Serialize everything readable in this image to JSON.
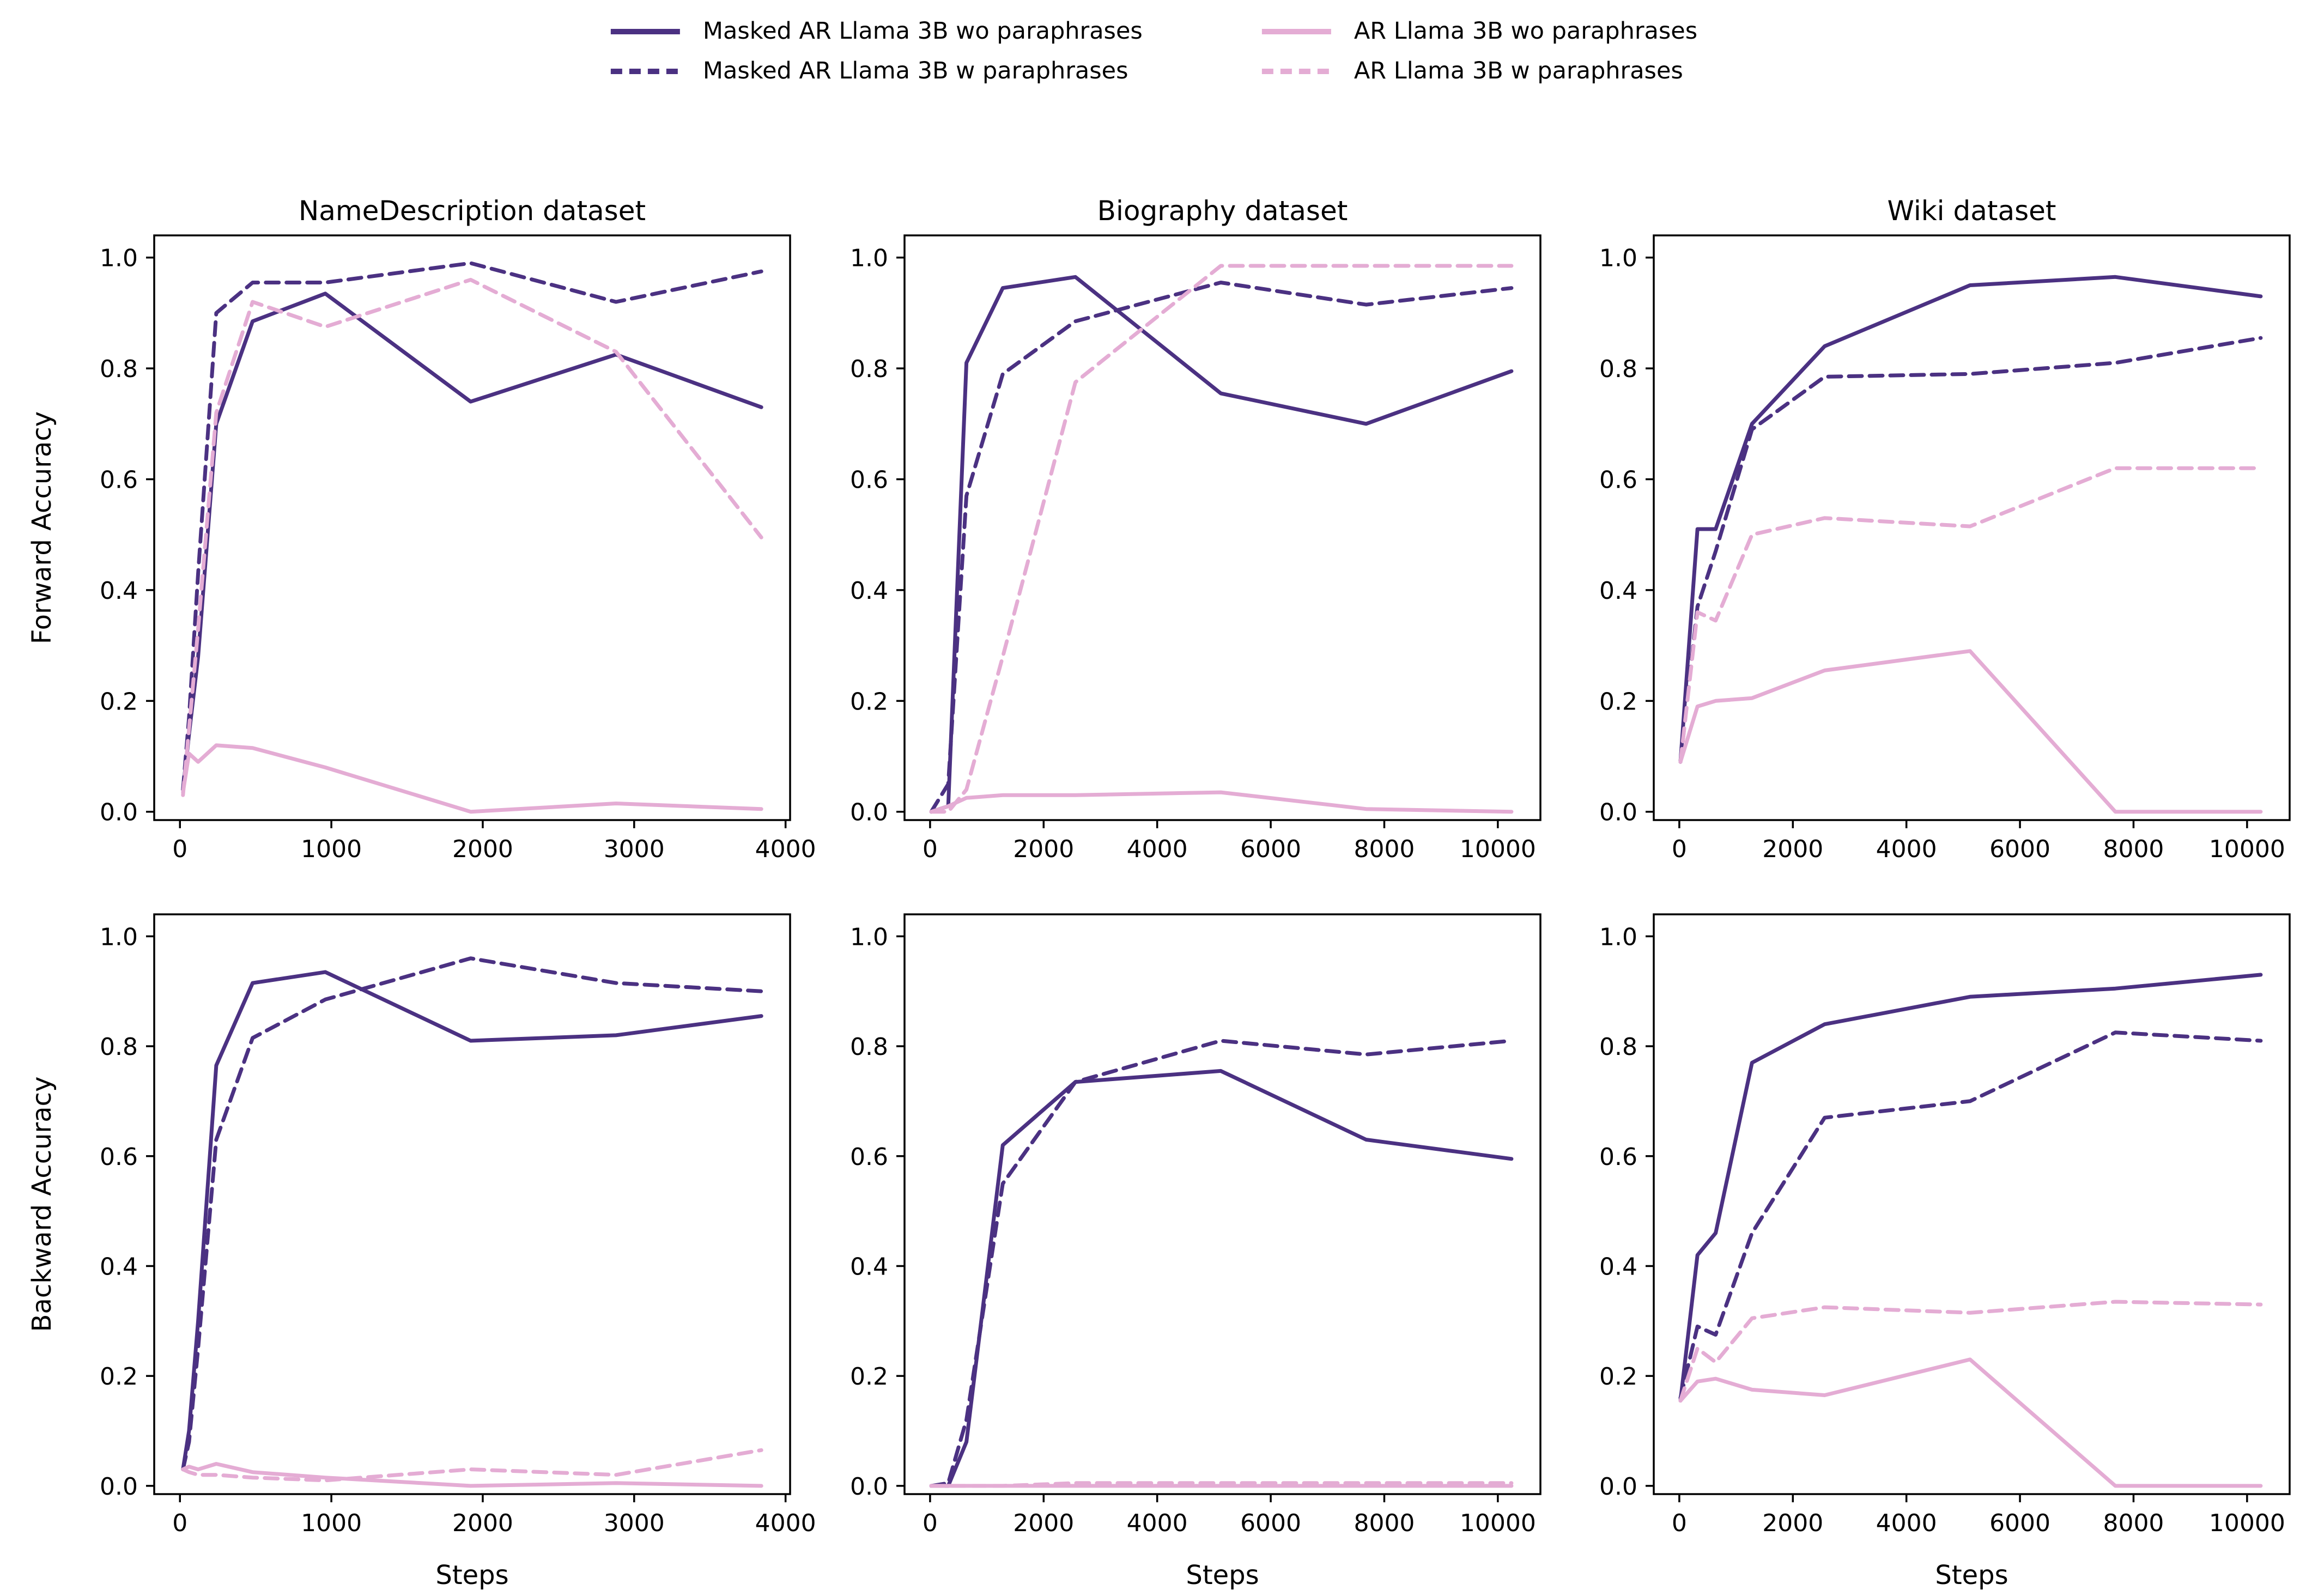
{
  "colors": {
    "masked_ar": "#4b3182",
    "ar": "#e4acd4",
    "axis": "#000000",
    "background": "#ffffff"
  },
  "legend": {
    "entries": [
      {
        "id": "masked_wo",
        "label": "Masked AR Llama 3B wo paraphrases",
        "color_key": "masked_ar",
        "dashed": false
      },
      {
        "id": "masked_w",
        "label": "Masked AR Llama 3B w paraphrases",
        "color_key": "masked_ar",
        "dashed": true
      },
      {
        "id": "ar_wo",
        "label": "AR Llama 3B wo paraphrases",
        "color_key": "ar",
        "dashed": false
      },
      {
        "id": "ar_w",
        "label": "AR Llama 3B w paraphrases",
        "color_key": "ar",
        "dashed": true
      }
    ]
  },
  "axes_labels": {
    "ylabel_forward": "Forward Accuracy",
    "ylabel_backward": "Backward Accuracy",
    "xlabel": "Steps"
  },
  "chart_data": [
    {
      "id": "forward-namedescription",
      "type": "line",
      "row": 0,
      "col": 0,
      "title": "NameDescription dataset",
      "ylabel": "Forward Accuracy",
      "xlabel": "",
      "xlim": [
        -170,
        4030
      ],
      "ylim": [
        -0.015,
        1.04
      ],
      "xticks": [
        0,
        1000,
        2000,
        3000,
        4000
      ],
      "yticks": [
        0.0,
        0.2,
        0.4,
        0.6,
        0.8,
        1.0
      ],
      "grid": false,
      "x": [
        20,
        60,
        120,
        240,
        480,
        960,
        1920,
        2880,
        3840
      ],
      "series": [
        {
          "key": "masked_wo",
          "name": "Masked AR Llama 3B wo paraphrases",
          "values": [
            0.04,
            0.14,
            0.28,
            0.7,
            0.885,
            0.935,
            0.74,
            0.825,
            0.73
          ]
        },
        {
          "key": "masked_w",
          "name": "Masked AR Llama 3B w paraphrases",
          "values": [
            0.04,
            0.17,
            0.43,
            0.9,
            0.955,
            0.955,
            0.99,
            0.92,
            0.975
          ]
        },
        {
          "key": "ar_wo",
          "name": "AR Llama 3B wo paraphrases",
          "values": [
            0.035,
            0.105,
            0.09,
            0.12,
            0.115,
            0.08,
            0.0,
            0.015,
            0.005
          ]
        },
        {
          "key": "ar_w",
          "name": "AR Llama 3B w paraphrases",
          "values": [
            0.03,
            0.15,
            0.33,
            0.72,
            0.92,
            0.875,
            0.96,
            0.83,
            0.495
          ]
        }
      ]
    },
    {
      "id": "forward-biography",
      "type": "line",
      "row": 0,
      "col": 1,
      "title": "Biography dataset",
      "ylabel": "",
      "xlabel": "",
      "xlim": [
        -450,
        10750
      ],
      "ylim": [
        -0.015,
        1.04
      ],
      "xticks": [
        0,
        2000,
        4000,
        6000,
        8000,
        10000
      ],
      "yticks": [
        0.0,
        0.2,
        0.4,
        0.6,
        0.8,
        1.0
      ],
      "grid": false,
      "x": [
        20,
        320,
        640,
        1280,
        2560,
        5120,
        7680,
        10240
      ],
      "series": [
        {
          "key": "masked_wo",
          "name": "Masked AR Llama 3B wo paraphrases",
          "values": [
            0.0,
            0.01,
            0.81,
            0.945,
            0.965,
            0.755,
            0.7,
            0.795
          ]
        },
        {
          "key": "masked_w",
          "name": "Masked AR Llama 3B w paraphrases",
          "values": [
            0.0,
            0.05,
            0.57,
            0.79,
            0.885,
            0.955,
            0.915,
            0.945
          ]
        },
        {
          "key": "ar_wo",
          "name": "AR Llama 3B wo paraphrases",
          "values": [
            0.0,
            0.01,
            0.025,
            0.03,
            0.03,
            0.035,
            0.005,
            0.0
          ]
        },
        {
          "key": "ar_w",
          "name": "AR Llama 3B w paraphrases",
          "values": [
            0.0,
            0.0,
            0.04,
            0.28,
            0.775,
            0.985,
            0.985,
            0.985
          ]
        }
      ]
    },
    {
      "id": "forward-wiki",
      "type": "line",
      "row": 0,
      "col": 2,
      "title": "Wiki dataset",
      "ylabel": "",
      "xlabel": "",
      "xlim": [
        -450,
        10750
      ],
      "ylim": [
        -0.015,
        1.04
      ],
      "xticks": [
        0,
        2000,
        4000,
        6000,
        8000,
        10000
      ],
      "yticks": [
        0.0,
        0.2,
        0.4,
        0.6,
        0.8,
        1.0
      ],
      "grid": false,
      "x": [
        20,
        320,
        640,
        1280,
        2560,
        5120,
        7680,
        10240
      ],
      "series": [
        {
          "key": "masked_wo",
          "name": "Masked AR Llama 3B wo paraphrases",
          "values": [
            0.09,
            0.51,
            0.51,
            0.7,
            0.84,
            0.95,
            0.965,
            0.93
          ]
        },
        {
          "key": "masked_w",
          "name": "Masked AR Llama 3B w paraphrases",
          "values": [
            0.09,
            0.37,
            0.47,
            0.69,
            0.785,
            0.79,
            0.81,
            0.855
          ]
        },
        {
          "key": "ar_wo",
          "name": "AR Llama 3B wo paraphrases",
          "values": [
            0.09,
            0.19,
            0.2,
            0.205,
            0.255,
            0.29,
            0.0,
            0.0
          ]
        },
        {
          "key": "ar_w",
          "name": "AR Llama 3B w paraphrases",
          "values": [
            0.09,
            0.36,
            0.345,
            0.5,
            0.53,
            0.515,
            0.62,
            0.62
          ]
        }
      ]
    },
    {
      "id": "backward-namedescription",
      "type": "line",
      "row": 1,
      "col": 0,
      "title": "",
      "ylabel": "Backward Accuracy",
      "xlabel": "Steps",
      "xlim": [
        -170,
        4030
      ],
      "ylim": [
        -0.015,
        1.04
      ],
      "xticks": [
        0,
        1000,
        2000,
        3000,
        4000
      ],
      "yticks": [
        0.0,
        0.2,
        0.4,
        0.6,
        0.8,
        1.0
      ],
      "grid": false,
      "x": [
        20,
        60,
        120,
        240,
        480,
        960,
        1920,
        2880,
        3840
      ],
      "series": [
        {
          "key": "masked_wo",
          "name": "Masked AR Llama 3B wo paraphrases",
          "values": [
            0.03,
            0.1,
            0.3,
            0.765,
            0.915,
            0.935,
            0.81,
            0.82,
            0.855
          ]
        },
        {
          "key": "masked_w",
          "name": "Masked AR Llama 3B w paraphrases",
          "values": [
            0.03,
            0.08,
            0.25,
            0.63,
            0.815,
            0.885,
            0.96,
            0.915,
            0.9
          ]
        },
        {
          "key": "ar_wo",
          "name": "AR Llama 3B wo paraphrases",
          "values": [
            0.03,
            0.035,
            0.03,
            0.04,
            0.025,
            0.015,
            0.0,
            0.005,
            0.0
          ]
        },
        {
          "key": "ar_w",
          "name": "AR Llama 3B w paraphrases",
          "values": [
            0.03,
            0.025,
            0.02,
            0.02,
            0.015,
            0.01,
            0.03,
            0.02,
            0.065
          ]
        }
      ]
    },
    {
      "id": "backward-biography",
      "type": "line",
      "row": 1,
      "col": 1,
      "title": "",
      "ylabel": "",
      "xlabel": "Steps",
      "xlim": [
        -450,
        10750
      ],
      "ylim": [
        -0.015,
        1.04
      ],
      "xticks": [
        0,
        2000,
        4000,
        6000,
        8000,
        10000
      ],
      "yticks": [
        0.0,
        0.2,
        0.4,
        0.6,
        0.8,
        1.0
      ],
      "grid": false,
      "x": [
        20,
        320,
        640,
        1280,
        2560,
        5120,
        7680,
        10240
      ],
      "series": [
        {
          "key": "masked_wo",
          "name": "Masked AR Llama 3B wo paraphrases",
          "values": [
            0.0,
            0.0,
            0.08,
            0.62,
            0.735,
            0.755,
            0.63,
            0.595
          ]
        },
        {
          "key": "masked_w",
          "name": "Masked AR Llama 3B w paraphrases",
          "values": [
            0.0,
            0.005,
            0.12,
            0.55,
            0.735,
            0.81,
            0.785,
            0.81
          ]
        },
        {
          "key": "ar_wo",
          "name": "AR Llama 3B wo paraphrases",
          "values": [
            0.0,
            0.0,
            0.0,
            0.0,
            0.0,
            0.0,
            0.0,
            0.0
          ]
        },
        {
          "key": "ar_w",
          "name": "AR Llama 3B w paraphrases",
          "values": [
            0.0,
            0.0,
            0.0,
            0.0,
            0.005,
            0.005,
            0.005,
            0.005
          ]
        }
      ]
    },
    {
      "id": "backward-wiki",
      "type": "line",
      "row": 1,
      "col": 2,
      "title": "",
      "ylabel": "",
      "xlabel": "Steps",
      "xlim": [
        -450,
        10750
      ],
      "ylim": [
        -0.015,
        1.04
      ],
      "xticks": [
        0,
        2000,
        4000,
        6000,
        8000,
        10000
      ],
      "yticks": [
        0.0,
        0.2,
        0.4,
        0.6,
        0.8,
        1.0
      ],
      "grid": false,
      "x": [
        20,
        320,
        640,
        1280,
        2560,
        5120,
        7680,
        10240
      ],
      "series": [
        {
          "key": "masked_wo",
          "name": "Masked AR Llama 3B wo paraphrases",
          "values": [
            0.155,
            0.42,
            0.46,
            0.77,
            0.84,
            0.89,
            0.905,
            0.93
          ]
        },
        {
          "key": "masked_w",
          "name": "Masked AR Llama 3B w paraphrases",
          "values": [
            0.16,
            0.29,
            0.275,
            0.46,
            0.67,
            0.7,
            0.825,
            0.81
          ]
        },
        {
          "key": "ar_wo",
          "name": "AR Llama 3B wo paraphrases",
          "values": [
            0.155,
            0.19,
            0.195,
            0.175,
            0.165,
            0.23,
            0.0,
            0.0
          ]
        },
        {
          "key": "ar_w",
          "name": "AR Llama 3B w paraphrases",
          "values": [
            0.155,
            0.25,
            0.225,
            0.305,
            0.325,
            0.315,
            0.335,
            0.33
          ]
        }
      ]
    }
  ]
}
